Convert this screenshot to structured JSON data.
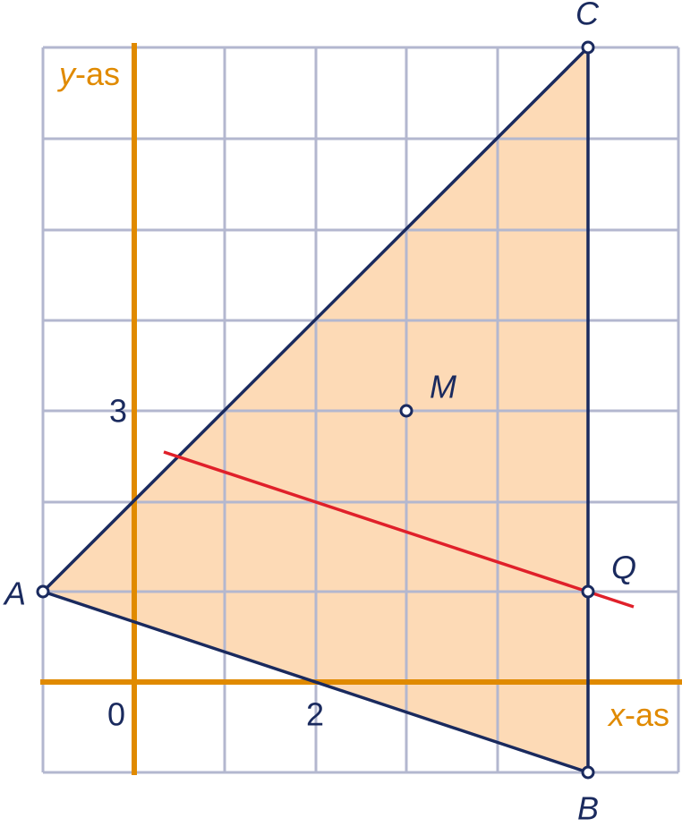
{
  "points": {
    "A": "A",
    "B": "B",
    "C": "C",
    "M": "M",
    "Q": "Q"
  },
  "tick_labels": {
    "x_origin": "0",
    "x_two": "2",
    "y_three": "3"
  },
  "axis_labels": {
    "y": {
      "variable": "y",
      "suffix": "-as"
    },
    "x": {
      "variable": "x",
      "suffix": "-as"
    }
  }
}
